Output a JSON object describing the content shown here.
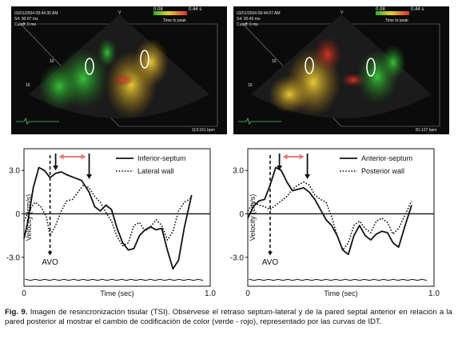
{
  "figure": {
    "caption_label": "Fig. 9.",
    "caption_text": "Imagen de resincronización tisular (TSI). Obsérvese el retraso septum-lateral y de la pared septal anterior en relación a la pared posterior al mostrar el cambio de codificación de color (verde - rojo), representado por las curvas de IDT."
  },
  "echo_left": {
    "header_lines": [
      "03/01/2004 08:44:35 AM",
      "S4: 90:07 ms",
      "Cutoff: 0 ms"
    ],
    "scale_start": "0.08",
    "scale_end": "0.44 s",
    "scale_caption": "Time to peak",
    "depth_marks": [
      "10",
      "15"
    ],
    "footer": "113:161 bpm",
    "top_mark": "V"
  },
  "echo_right": {
    "header_lines": [
      "03/01/2004 08:44:07 AM",
      "S4: 90:45 ms",
      "Cutoff: 0 ms"
    ],
    "scale_start": "0.08",
    "scale_end": "0.44 s",
    "scale_caption": "Time to peak",
    "depth_marks": [
      "10",
      "15"
    ],
    "footer": "81:127 bpm",
    "top_mark": "V"
  },
  "colors": {
    "echo_green": "#2faa2f",
    "echo_yellow": "#e8c82a",
    "echo_red": "#d83a2a",
    "arrow_pink": "#e87a7a"
  },
  "chart_data": [
    {
      "type": "line",
      "ylabel": "Velocity (cm/s)",
      "xlabel": "Time (sec)",
      "xlim": [
        0,
        1.0
      ],
      "ylim": [
        -5,
        4.5
      ],
      "y_ticks": [
        "3.0",
        "0",
        "-3.0"
      ],
      "y_tick_values": [
        3,
        0,
        -3
      ],
      "x_ticks": [
        "0",
        "1.0"
      ],
      "x_tick_values": [
        0,
        1.0
      ],
      "annotation": "AVO",
      "avo_x": 0.14,
      "arrow_x": [
        0.17,
        0.35
      ],
      "series": [
        {
          "name": "Inferior-septum",
          "style": "solid",
          "x": [
            0,
            0.02,
            0.05,
            0.08,
            0.11,
            0.14,
            0.17,
            0.2,
            0.23,
            0.27,
            0.31,
            0.35,
            0.38,
            0.41,
            0.44,
            0.47,
            0.5,
            0.53,
            0.56,
            0.59,
            0.62,
            0.65,
            0.68,
            0.71,
            0.74,
            0.77,
            0.8,
            0.83,
            0.86,
            0.9
          ],
          "y": [
            -1.7,
            -0.6,
            1.8,
            3.2,
            3.0,
            2.5,
            2.8,
            2.9,
            2.7,
            2.5,
            2.3,
            1.5,
            0.5,
            0.2,
            0.6,
            0.3,
            -1.0,
            -2.0,
            -2.5,
            -2.4,
            -1.5,
            -1.1,
            -0.9,
            -1.1,
            -1.0,
            -2.5,
            -3.8,
            -3.2,
            -1.0,
            1.3
          ]
        },
        {
          "name": "Lateral wall",
          "style": "dotted",
          "x": [
            0,
            0.03,
            0.06,
            0.09,
            0.12,
            0.14,
            0.17,
            0.2,
            0.23,
            0.26,
            0.29,
            0.32,
            0.35,
            0.38,
            0.41,
            0.44,
            0.47,
            0.5,
            0.53,
            0.56,
            0.59,
            0.62,
            0.65,
            0.68,
            0.71,
            0.74,
            0.77,
            0.8,
            0.83,
            0.86,
            0.9
          ],
          "y": [
            -0.5,
            0.3,
            0.8,
            0.5,
            -0.2,
            -1.5,
            -0.8,
            0.2,
            0.9,
            1.0,
            1.5,
            2.0,
            1.8,
            1.2,
            0.8,
            0.1,
            -0.5,
            -1.6,
            -2.2,
            -2.0,
            -0.8,
            -0.6,
            -1.2,
            -0.9,
            -0.4,
            -0.8,
            -1.8,
            -1.2,
            0.2,
            0.8,
            1.1
          ]
        }
      ]
    },
    {
      "type": "line",
      "ylabel": "Velocity (cm/s)",
      "xlabel": "Time (sec)",
      "xlim": [
        0,
        1.0
      ],
      "ylim": [
        -5,
        4.5
      ],
      "y_ticks": [
        "3.0",
        "0",
        "-3.0"
      ],
      "y_tick_values": [
        3,
        0,
        -3
      ],
      "x_ticks": [
        "0",
        "1.0"
      ],
      "x_tick_values": [
        0,
        1.0
      ],
      "annotation": "AVO",
      "avo_x": 0.12,
      "arrow_x": [
        0.17,
        0.32
      ],
      "series": [
        {
          "name": "Anterior-septum",
          "style": "solid",
          "x": [
            0,
            0.03,
            0.06,
            0.09,
            0.12,
            0.15,
            0.18,
            0.21,
            0.24,
            0.27,
            0.3,
            0.33,
            0.36,
            0.39,
            0.42,
            0.45,
            0.48,
            0.51,
            0.54,
            0.57,
            0.6,
            0.63,
            0.66,
            0.69,
            0.72,
            0.75,
            0.78,
            0.81,
            0.84,
            0.88
          ],
          "y": [
            -0.3,
            0.5,
            0.9,
            1.0,
            2.0,
            3.2,
            3.0,
            2.2,
            1.6,
            1.7,
            1.8,
            1.5,
            1.0,
            0.3,
            -0.4,
            -0.8,
            -1.5,
            -2.5,
            -2.8,
            -1.5,
            -0.8,
            -1.5,
            -1.8,
            -1.4,
            -1.2,
            -1.3,
            -2.0,
            -2.3,
            -1.0,
            0.6
          ]
        },
        {
          "name": "Posterior wall",
          "style": "dotted",
          "x": [
            0,
            0.03,
            0.06,
            0.09,
            0.12,
            0.15,
            0.18,
            0.21,
            0.24,
            0.27,
            0.3,
            0.33,
            0.36,
            0.39,
            0.42,
            0.45,
            0.48,
            0.51,
            0.54,
            0.57,
            0.6,
            0.63,
            0.66,
            0.69,
            0.72,
            0.75,
            0.78,
            0.81,
            0.84,
            0.88
          ],
          "y": [
            0.2,
            0.8,
            0.6,
            0.5,
            0.3,
            0.6,
            0.9,
            1.2,
            1.7,
            2.0,
            2.2,
            2.0,
            1.3,
            1.0,
            0.8,
            -0.2,
            -1.5,
            -2.5,
            -2.0,
            -0.8,
            -0.5,
            -1.0,
            -1.3,
            -0.5,
            -0.3,
            -0.6,
            -1.4,
            -1.0,
            -0.2,
            0.9
          ]
        }
      ]
    }
  ]
}
